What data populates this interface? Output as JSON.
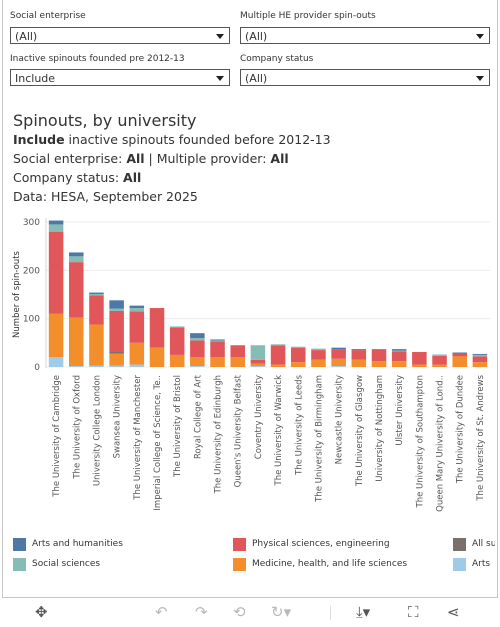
{
  "filters": {
    "social_enterprise": {
      "label": "Social enterprise",
      "value": "(All)"
    },
    "multiple_provider": {
      "label": "Multiple HE provider spin-outs",
      "value": "(All)"
    },
    "inactive": {
      "label": "Inactive spinouts founded pre 2012-13",
      "value": "Include"
    },
    "company_status": {
      "label": "Company status",
      "value": "(All)"
    }
  },
  "header": {
    "title": "Spinouts, by university",
    "line1_bold": "Include",
    "line1_rest": " inactive spinouts founded before 2012-13",
    "line2_a": "Social enterprise: ",
    "line2_b": "All",
    "line2_c": " | Multiple provider: ",
    "line2_d": "All",
    "line3_a": "Company status: ",
    "line3_b": "All",
    "line4": "Data: HESA, September 2025"
  },
  "colors": {
    "Arts and humanities": "#4e79a7",
    "Social sciences": "#86bcb6",
    "Physical sciences, engineering": "#e15759",
    "Medicine, health, and life sciences": "#f28e2b",
    "All subjects": "#79706e",
    "Arts": "#a0cbe8"
  },
  "chart_data": {
    "type": "bar",
    "stacked": true,
    "ylabel": "Number of spin-outs",
    "ylim": [
      0,
      300
    ],
    "yticks": [
      0,
      100,
      200,
      300
    ],
    "grid": true,
    "categories": [
      "The University of Cambridge",
      "The University of Oxford",
      "University College London",
      "Swansea University",
      "The University of Manchester",
      "Imperial College of Science, Te..",
      "The University of Bristol",
      "Royal College of Art",
      "The University of Edinburgh",
      "Queen's University Belfast",
      "Coventry University",
      "The University of Warwick",
      "The University of Leeds",
      "The University of Birmingham",
      "Newcastle University",
      "The University of Glasgow",
      "University of Nottingham",
      "Ulster University",
      "The University of Southampton",
      "Queen Mary University of Lond..",
      "The University of Dundee",
      "The University of St. Andrews"
    ],
    "series": [
      {
        "name": "Arts",
        "values": [
          20,
          2,
          3,
          3,
          5,
          0,
          0,
          2,
          0,
          0,
          2,
          0,
          0,
          0,
          2,
          0,
          0,
          0,
          0,
          0,
          0,
          0
        ]
      },
      {
        "name": "Medicine, health, and life sciences",
        "values": [
          90,
          100,
          85,
          25,
          45,
          40,
          25,
          18,
          20,
          20,
          5,
          5,
          10,
          15,
          15,
          15,
          12,
          12,
          5,
          5,
          22,
          10
        ]
      },
      {
        "name": "All subjects",
        "values": [
          0,
          0,
          0,
          3,
          0,
          0,
          0,
          0,
          0,
          0,
          0,
          0,
          0,
          0,
          0,
          0,
          0,
          0,
          0,
          0,
          0,
          0
        ]
      },
      {
        "name": "Physical sciences, engineering",
        "values": [
          170,
          115,
          60,
          85,
          65,
          82,
          57,
          35,
          33,
          25,
          8,
          40,
          30,
          20,
          20,
          20,
          25,
          20,
          26,
          18,
          6,
          12
        ]
      },
      {
        "name": "Social sciences",
        "values": [
          15,
          12,
          3,
          5,
          7,
          0,
          2,
          5,
          2,
          0,
          30,
          2,
          2,
          3,
          0,
          0,
          0,
          2,
          0,
          3,
          0,
          3
        ]
      },
      {
        "name": "Arts and humanities",
        "values": [
          8,
          8,
          3,
          17,
          5,
          0,
          0,
          10,
          2,
          0,
          0,
          0,
          0,
          0,
          3,
          2,
          0,
          3,
          0,
          0,
          2,
          2
        ]
      }
    ]
  },
  "legend": [
    {
      "name": "Arts and humanities",
      "col": 0,
      "row": 0
    },
    {
      "name": "Social sciences",
      "col": 0,
      "row": 1
    },
    {
      "name": "Physical sciences, engineering",
      "col": 1,
      "row": 0
    },
    {
      "name": "Medicine, health, and life sciences",
      "col": 1,
      "row": 1
    },
    {
      "name": "All subjects",
      "col": 2,
      "row": 0
    },
    {
      "name": "Arts",
      "col": 2,
      "row": 1
    }
  ],
  "toolbar": {
    "icons": [
      "move-icon",
      "undo-icon",
      "redo-icon",
      "revert-icon",
      "refresh-icon",
      "download-icon",
      "fullscreen-icon",
      "share-icon"
    ]
  }
}
